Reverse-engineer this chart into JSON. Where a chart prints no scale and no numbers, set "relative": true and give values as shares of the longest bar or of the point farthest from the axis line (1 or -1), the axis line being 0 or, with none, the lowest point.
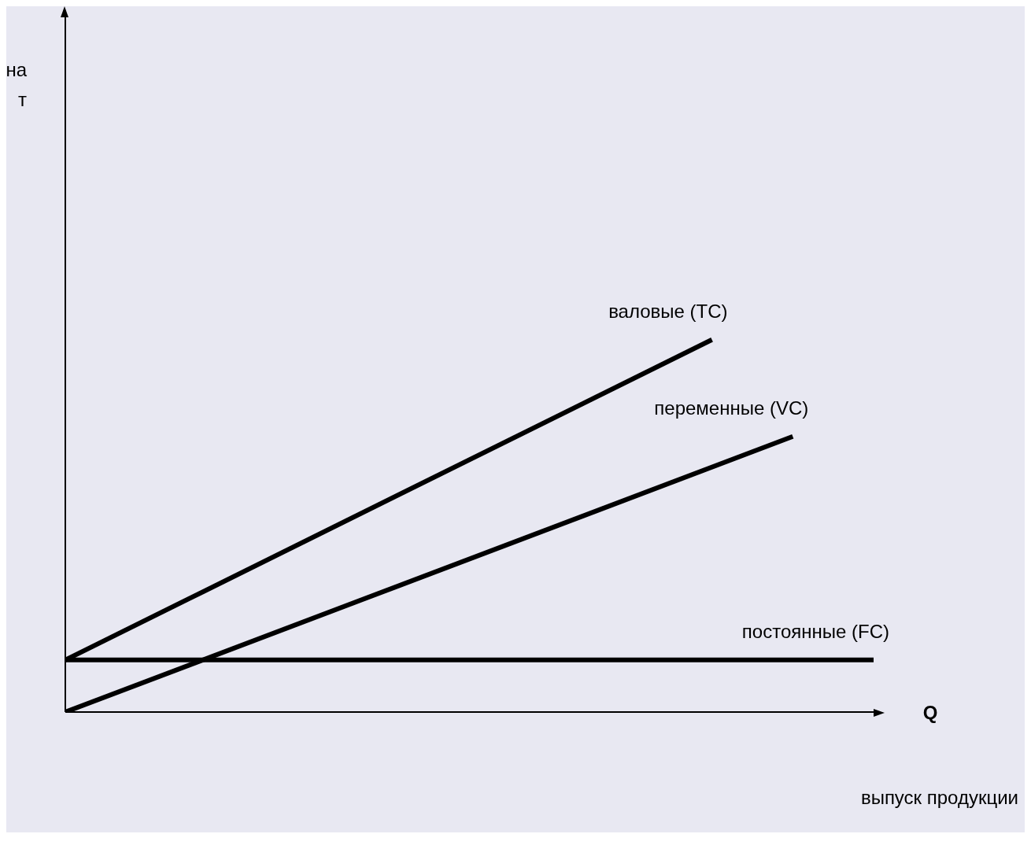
{
  "chart_data": {
    "type": "line",
    "relative": true,
    "xlabel": "Q",
    "annotations": [
      "на\nт",
      "выпуск продукции"
    ],
    "marker": "none",
    "line_style": "solid",
    "grid": false,
    "legend": false,
    "categories": [
      null,
      null,
      null,
      null,
      null,
      null,
      null,
      null,
      null,
      null,
      null,
      null,
      null,
      null,
      null,
      null,
      null,
      null,
      null,
      null,
      null
    ],
    "series": [
      {
        "name": "валовые (TC)",
        "color": "#000000",
        "values": [
          0.14,
          null,
          null,
          null,
          null,
          null,
          null,
          null,
          null,
          null,
          null,
          null,
          null,
          null,
          null,
          null,
          1,
          null,
          null,
          null,
          null
        ]
      },
      {
        "name": "переменные (VC)",
        "color": "#000000",
        "values": [
          0,
          null,
          null,
          null,
          null,
          null,
          null,
          null,
          null,
          null,
          null,
          null,
          null,
          null,
          null,
          null,
          null,
          null,
          0.74,
          null,
          null
        ]
      },
      {
        "name": "постоянные (FC)",
        "color": "#000000",
        "values": [
          0.14,
          null,
          null,
          null,
          null,
          null,
          null,
          null,
          null,
          null,
          null,
          null,
          null,
          null,
          null,
          null,
          null,
          null,
          null,
          null,
          0.14
        ]
      }
    ]
  }
}
